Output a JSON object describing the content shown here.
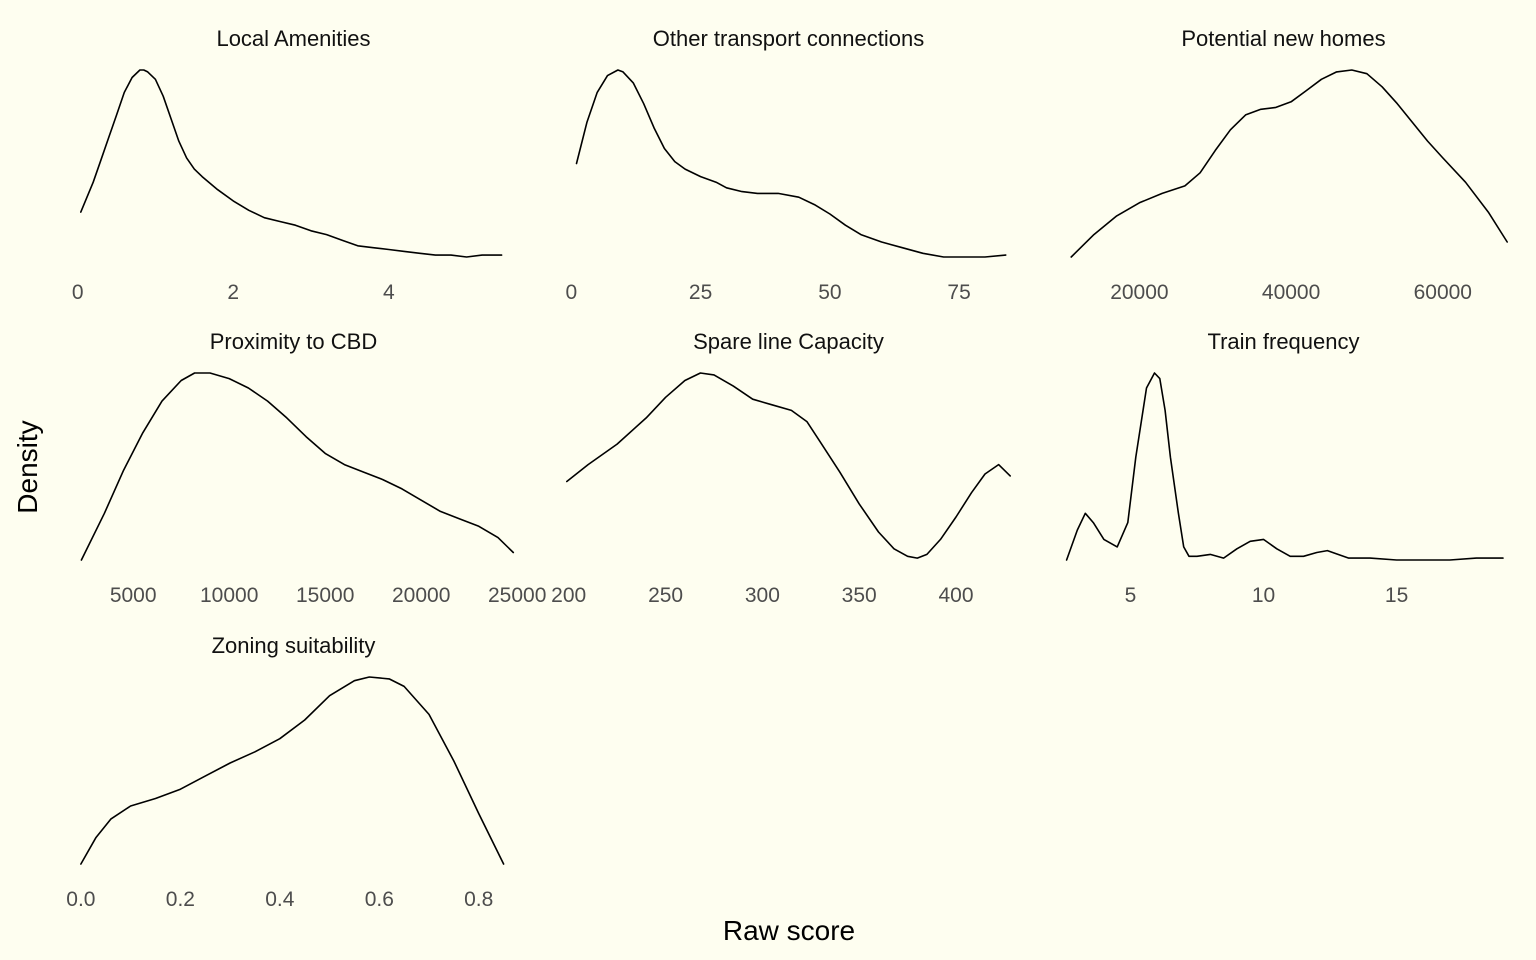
{
  "chart_data": {
    "type": "line",
    "xlabel": "Raw score",
    "ylabel": "Density",
    "grid": false,
    "legend": "none",
    "line_color": "#000000",
    "background_color": "#FEFEF0",
    "panels": [
      {
        "title": "Local Amenities",
        "xlim": [
          -0.15,
          5.7
        ],
        "ticks": [
          {
            "value": 0,
            "label": "0"
          },
          {
            "value": 2,
            "label": "2"
          },
          {
            "value": 4,
            "label": "4"
          }
        ],
        "x": [
          0.04,
          0.2,
          0.3,
          0.4,
          0.5,
          0.6,
          0.7,
          0.8,
          0.85,
          0.9,
          1.0,
          1.1,
          1.2,
          1.3,
          1.4,
          1.5,
          1.6,
          1.8,
          2.0,
          2.2,
          2.4,
          2.6,
          2.8,
          3.0,
          3.2,
          3.4,
          3.6,
          3.8,
          4.0,
          4.2,
          4.4,
          4.6,
          4.8,
          5.0,
          5.2,
          5.45
        ],
        "y": [
          0.24,
          0.4,
          0.52,
          0.64,
          0.76,
          0.88,
          0.96,
          1.0,
          1.0,
          0.99,
          0.95,
          0.86,
          0.74,
          0.62,
          0.53,
          0.47,
          0.43,
          0.36,
          0.3,
          0.25,
          0.21,
          0.19,
          0.17,
          0.14,
          0.12,
          0.09,
          0.06,
          0.05,
          0.04,
          0.03,
          0.02,
          0.01,
          0.01,
          0.0,
          0.01,
          0.01
        ]
      },
      {
        "title": "Other transport connections",
        "xlim": [
          -2,
          86
        ],
        "ticks": [
          {
            "value": 0,
            "label": "0"
          },
          {
            "value": 25,
            "label": "25"
          },
          {
            "value": 50,
            "label": "50"
          },
          {
            "value": 75,
            "label": "75"
          }
        ],
        "x": [
          1,
          3,
          5,
          7,
          9,
          10,
          12,
          14,
          16,
          18,
          20,
          22,
          25,
          28,
          30,
          33,
          36,
          40,
          44,
          47,
          50,
          53,
          56,
          60,
          64,
          68,
          72,
          76,
          80,
          84
        ],
        "y": [
          0.5,
          0.72,
          0.88,
          0.97,
          1.0,
          0.99,
          0.93,
          0.82,
          0.69,
          0.58,
          0.51,
          0.47,
          0.43,
          0.4,
          0.37,
          0.35,
          0.34,
          0.34,
          0.32,
          0.28,
          0.23,
          0.17,
          0.12,
          0.08,
          0.05,
          0.02,
          0.0,
          0.0,
          0.0,
          0.01
        ]
      },
      {
        "title": "Potential new homes",
        "xlim": [
          9000,
          69000
        ],
        "ticks": [
          {
            "value": 20000,
            "label": "20000"
          },
          {
            "value": 40000,
            "label": "40000"
          },
          {
            "value": 60000,
            "label": "60000"
          }
        ],
        "x": [
          11000,
          14000,
          17000,
          20000,
          23000,
          26000,
          28000,
          30000,
          32000,
          34000,
          36000,
          38000,
          40000,
          42000,
          44000,
          46000,
          48000,
          50000,
          52000,
          54000,
          56000,
          58000,
          60000,
          63000,
          66000,
          68500
        ],
        "y": [
          0.0,
          0.12,
          0.22,
          0.29,
          0.34,
          0.38,
          0.45,
          0.57,
          0.68,
          0.76,
          0.79,
          0.8,
          0.83,
          0.89,
          0.95,
          0.99,
          1.0,
          0.98,
          0.91,
          0.82,
          0.72,
          0.62,
          0.53,
          0.4,
          0.24,
          0.08
        ]
      },
      {
        "title": "Proximity to CBD",
        "xlim": [
          1500,
          25200
        ],
        "ticks": [
          {
            "value": 5000,
            "label": "5000"
          },
          {
            "value": 10000,
            "label": "10000"
          },
          {
            "value": 15000,
            "label": "15000"
          },
          {
            "value": 20000,
            "label": "20000"
          },
          {
            "value": 25000,
            "label": "25000"
          }
        ],
        "x": [
          2300,
          3500,
          4500,
          5500,
          6500,
          7500,
          8200,
          9000,
          10000,
          11000,
          12000,
          13000,
          14000,
          15000,
          16000,
          17000,
          18000,
          19000,
          20000,
          21000,
          22000,
          23000,
          24000,
          24800
        ],
        "y": [
          0.0,
          0.25,
          0.48,
          0.68,
          0.85,
          0.96,
          1.0,
          1.0,
          0.97,
          0.92,
          0.85,
          0.76,
          0.66,
          0.57,
          0.51,
          0.47,
          0.43,
          0.38,
          0.32,
          0.26,
          0.22,
          0.18,
          0.12,
          0.04
        ]
      },
      {
        "title": "Spare line Capacity",
        "xlim": [
          196,
          431
        ],
        "ticks": [
          {
            "value": 200,
            "label": "200"
          },
          {
            "value": 250,
            "label": "250"
          },
          {
            "value": 300,
            "label": "300"
          },
          {
            "value": 350,
            "label": "350"
          },
          {
            "value": 400,
            "label": "400"
          }
        ],
        "x": [
          199,
          210,
          225,
          240,
          250,
          260,
          268,
          275,
          285,
          295,
          305,
          315,
          323,
          330,
          340,
          350,
          360,
          368,
          375,
          380,
          385,
          392,
          400,
          408,
          415,
          422,
          428
        ],
        "y": [
          0.42,
          0.51,
          0.62,
          0.76,
          0.87,
          0.96,
          1.0,
          0.99,
          0.93,
          0.86,
          0.83,
          0.8,
          0.74,
          0.63,
          0.47,
          0.3,
          0.15,
          0.06,
          0.02,
          0.01,
          0.03,
          0.11,
          0.23,
          0.36,
          0.46,
          0.51,
          0.45
        ]
      },
      {
        "title": "Train frequency",
        "xlim": [
          2.2,
          19.3
        ],
        "ticks": [
          {
            "value": 5,
            "label": "5"
          },
          {
            "value": 10,
            "label": "10"
          },
          {
            "value": 15,
            "label": "15"
          }
        ],
        "x": [
          2.6,
          3.0,
          3.3,
          3.6,
          4.0,
          4.5,
          4.9,
          5.2,
          5.6,
          5.9,
          6.1,
          6.3,
          6.5,
          6.8,
          7.0,
          7.2,
          7.5,
          8.0,
          8.5,
          9.0,
          9.5,
          10.0,
          10.5,
          11.0,
          11.5,
          12.0,
          12.4,
          12.8,
          13.2,
          14,
          15,
          16,
          17,
          18,
          19
        ],
        "y": [
          0.0,
          0.16,
          0.25,
          0.2,
          0.11,
          0.07,
          0.2,
          0.55,
          0.92,
          1.0,
          0.97,
          0.8,
          0.55,
          0.25,
          0.07,
          0.02,
          0.02,
          0.03,
          0.01,
          0.06,
          0.1,
          0.11,
          0.06,
          0.02,
          0.02,
          0.04,
          0.05,
          0.03,
          0.01,
          0.01,
          0.0,
          0.0,
          0.0,
          0.01,
          0.01
        ]
      },
      {
        "title": "Zoning suitability",
        "xlim": [
          -0.03,
          0.885
        ],
        "ticks": [
          {
            "value": 0.0,
            "label": "0.0"
          },
          {
            "value": 0.2,
            "label": "0.2"
          },
          {
            "value": 0.4,
            "label": "0.4"
          },
          {
            "value": 0.6,
            "label": "0.6"
          },
          {
            "value": 0.8,
            "label": "0.8"
          }
        ],
        "x": [
          0.0,
          0.03,
          0.06,
          0.1,
          0.15,
          0.2,
          0.25,
          0.3,
          0.35,
          0.4,
          0.45,
          0.5,
          0.55,
          0.58,
          0.62,
          0.65,
          0.7,
          0.75,
          0.8,
          0.85
        ],
        "y": [
          0.0,
          0.14,
          0.24,
          0.31,
          0.35,
          0.4,
          0.47,
          0.54,
          0.6,
          0.67,
          0.77,
          0.9,
          0.98,
          1.0,
          0.99,
          0.95,
          0.8,
          0.55,
          0.27,
          0.0
        ]
      }
    ]
  }
}
